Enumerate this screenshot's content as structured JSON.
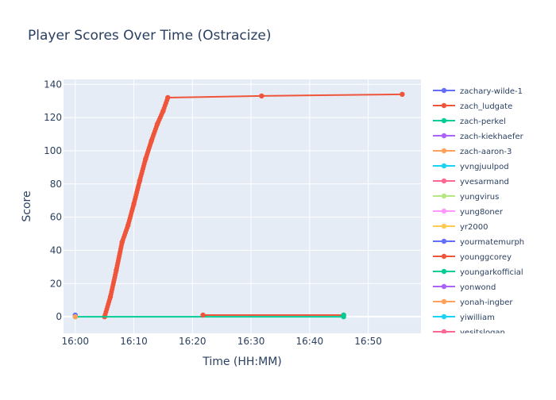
{
  "chart_data": {
    "type": "line",
    "title": "Player Scores Over Time (Ostracize)",
    "xlabel": "Time (HH:MM)",
    "ylabel": "Score",
    "x_unit": "time_minutes_HH:MM",
    "xlim": [
      "15:58",
      "16:59"
    ],
    "ylim": [
      -10,
      143
    ],
    "x_ticks": [
      "16:00",
      "16:10",
      "16:20",
      "16:30",
      "16:40",
      "16:50"
    ],
    "y_ticks": [
      0,
      20,
      40,
      60,
      80,
      100,
      120,
      140
    ],
    "grid": true,
    "background_color": "#e5ecf6",
    "legend_position": "right",
    "series": [
      {
        "name": "zachary-wilde-1",
        "color": "#636efa",
        "points": [
          [
            "16:00",
            1
          ]
        ]
      },
      {
        "name": "zach_ludgate",
        "color": "#ef553b",
        "points": [
          [
            "16:05",
            0
          ],
          [
            "16:06",
            12
          ],
          [
            "16:07",
            28
          ],
          [
            "16:08",
            45
          ],
          [
            "16:09",
            55
          ],
          [
            "16:10",
            68
          ],
          [
            "16:11",
            82
          ],
          [
            "16:12",
            95
          ],
          [
            "16:13",
            106
          ],
          [
            "16:14",
            116
          ],
          [
            "16:15",
            124
          ],
          [
            "16:15.8",
            132
          ],
          [
            "16:31.8",
            133
          ],
          [
            "16:55.8",
            134
          ]
        ]
      },
      {
        "name": "zach-perkel",
        "color": "#00cc96",
        "points": [
          [
            "16:00",
            0
          ],
          [
            "16:45.8",
            0
          ]
        ]
      },
      {
        "name": "zach-kiekhaefer",
        "color": "#ab63fa",
        "points": []
      },
      {
        "name": "zach-aaron-3",
        "color": "#ffa15a",
        "points": [
          [
            "16:00",
            0
          ]
        ]
      },
      {
        "name": "yvngjuulpod",
        "color": "#19d3f3",
        "points": []
      },
      {
        "name": "yvesarmand",
        "color": "#ff6692",
        "points": []
      },
      {
        "name": "yungvirus",
        "color": "#b6e880",
        "points": []
      },
      {
        "name": "yung8oner",
        "color": "#ff97ff",
        "points": []
      },
      {
        "name": "yr2000",
        "color": "#fecb52",
        "points": []
      },
      {
        "name": "yourmatemurph",
        "color": "#636efa",
        "points": []
      },
      {
        "name": "younggcorey",
        "color": "#ef553b",
        "points": [
          [
            "16:21.8",
            1
          ],
          [
            "16:45.8",
            1
          ]
        ]
      },
      {
        "name": "youngarkofficial",
        "color": "#00cc96",
        "points": [
          [
            "16:45.8",
            1
          ]
        ]
      },
      {
        "name": "yonwond",
        "color": "#ab63fa",
        "points": []
      },
      {
        "name": "yonah-ingber",
        "color": "#ffa15a",
        "points": []
      },
      {
        "name": "yiwilliam",
        "color": "#19d3f3",
        "points": []
      },
      {
        "name": "yesitslogan",
        "color": "#ff6692",
        "points": []
      }
    ]
  }
}
